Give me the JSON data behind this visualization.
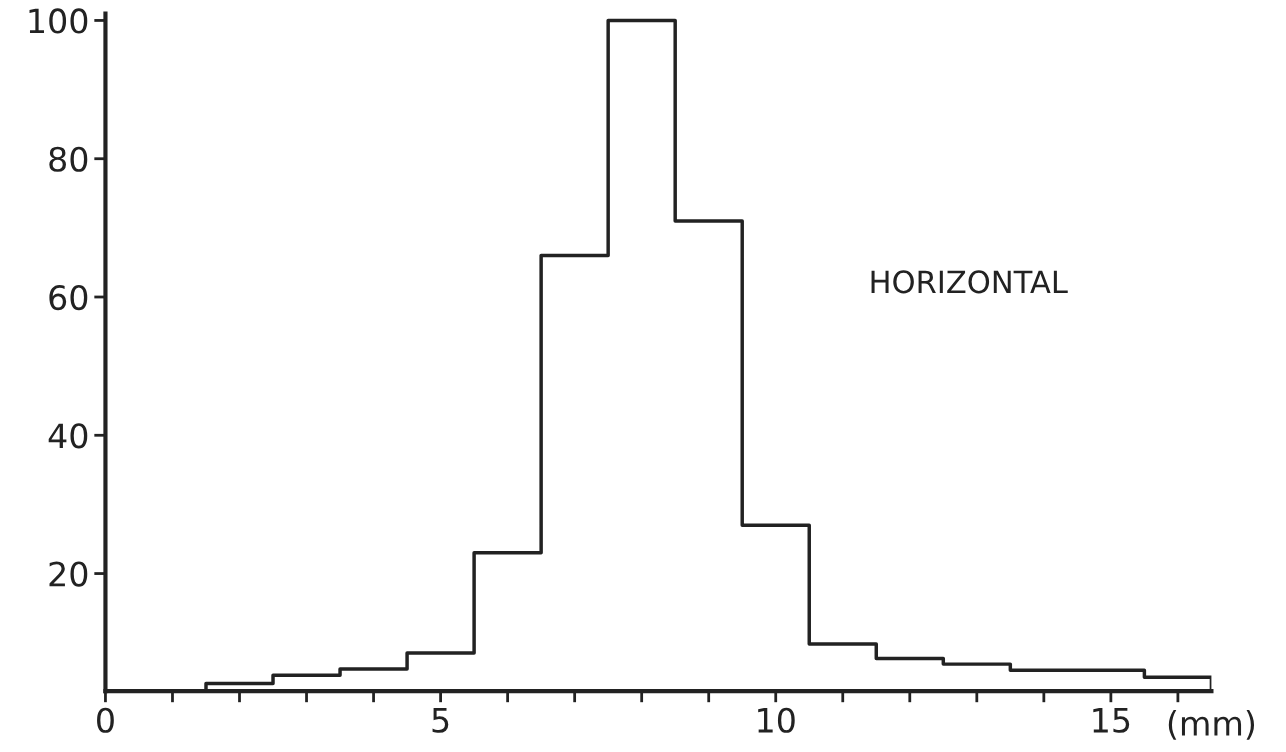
{
  "chart_data": {
    "type": "histogram",
    "xlabel": "(mm)",
    "bins": [
      1.5,
      2.5,
      3.5,
      4.5,
      5.5,
      6.5,
      7.5,
      8.5,
      9.5,
      10.5,
      11.5,
      12.5,
      13.5,
      14.5,
      15.5,
      16.5
    ],
    "values": [
      4.1,
      5.3,
      6.2,
      8.5,
      23,
      66,
      100,
      71,
      27,
      9.8,
      7.7,
      6.9,
      6.0,
      6.0,
      5.0
    ],
    "color": "#222222",
    "xlim": [
      0,
      16.5
    ],
    "xticks": [
      0,
      {
        "value": 1,
        "label": null
      },
      {
        "value": 2,
        "label": null
      },
      {
        "value": 3,
        "label": null
      },
      {
        "value": 4,
        "label": null
      },
      5,
      {
        "value": 6,
        "label": null
      },
      {
        "value": 7,
        "label": null
      },
      {
        "value": 8,
        "label": null
      },
      {
        "value": 9,
        "label": null
      },
      10,
      {
        "value": 11,
        "label": null
      },
      {
        "value": 12,
        "label": null
      },
      {
        "value": 13,
        "label": null
      },
      {
        "value": 14,
        "label": null
      },
      15,
      {
        "value": 16,
        "label": null
      }
    ],
    "ylim": [
      3,
      101
    ],
    "yticks": [
      20,
      40,
      60,
      80,
      100
    ],
    "annotations": [
      "HORIZONTAL"
    ],
    "grid": false,
    "legend": false
  }
}
